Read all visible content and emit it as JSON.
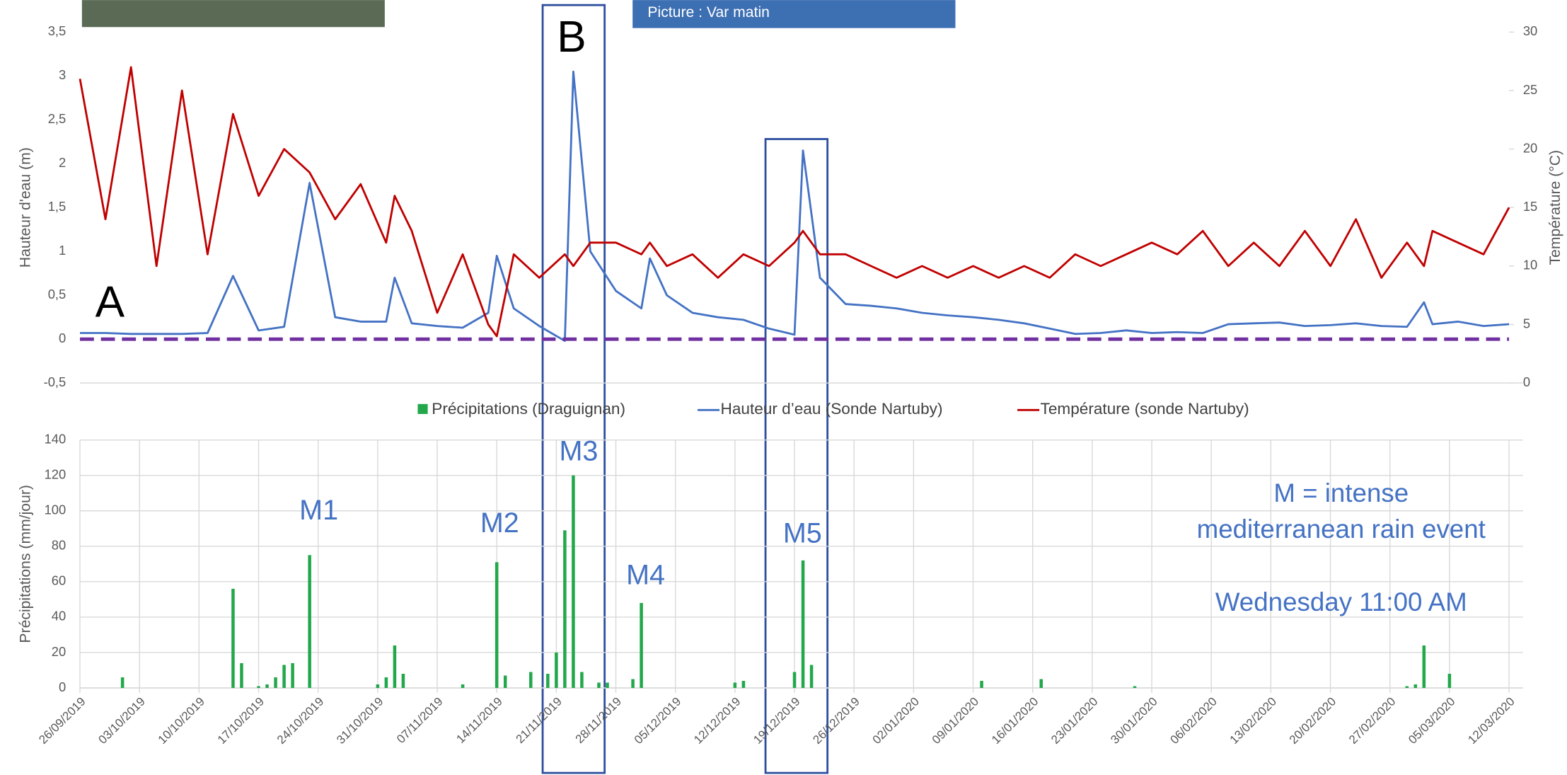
{
  "photo_caption": "Picture : Var matin",
  "chart_data": [
    {
      "type": "line",
      "y_label": "Hauteur d'eau (m)",
      "y2_label": "Température (°C)",
      "annotations": [
        "A",
        "B"
      ],
      "xlim": [
        "26/09/2019",
        "12/03/2020"
      ],
      "ylim": [
        -0.5,
        3.5
      ],
      "yticks": [
        {
          "value": -0.5,
          "label": "-0,5"
        },
        0,
        {
          "value": 0.5,
          "label": "0,5"
        },
        1,
        {
          "value": 1.5,
          "label": "1,5"
        },
        2,
        {
          "value": 2.5,
          "label": "2,5"
        },
        3,
        {
          "value": 3.5,
          "label": "3,5"
        }
      ],
      "y2lim": [
        0,
        30
      ],
      "y2ticks": [
        0,
        5,
        10,
        15,
        20,
        25,
        30
      ],
      "hline": {
        "value": 0,
        "color": "#7030a0"
      },
      "x": [
        "26/09/2019",
        "29/09/2019",
        "02/10/2019",
        "05/10/2019",
        "08/10/2019",
        "11/10/2019",
        "14/10/2019",
        "17/10/2019",
        "20/10/2019",
        "23/10/2019",
        "26/10/2019",
        "29/10/2019",
        "01/11/2019",
        "02/11/2019",
        "04/11/2019",
        "07/11/2019",
        "10/11/2019",
        "13/11/2019",
        "14/11/2019",
        "16/11/2019",
        "19/11/2019",
        "22/11/2019",
        "23/11/2019",
        "25/11/2019",
        "28/11/2019",
        "01/12/2019",
        "02/12/2019",
        "04/12/2019",
        "07/12/2019",
        "10/12/2019",
        "13/12/2019",
        "16/12/2019",
        "19/12/2019",
        "20/12/2019",
        "22/12/2019",
        "25/12/2019",
        "28/12/2019",
        "31/12/2019",
        "03/01/2020",
        "06/01/2020",
        "09/01/2020",
        "12/01/2020",
        "15/01/2020",
        "18/01/2020",
        "21/01/2020",
        "24/01/2020",
        "27/01/2020",
        "30/01/2020",
        "02/02/2020",
        "05/02/2020",
        "08/02/2020",
        "11/02/2020",
        "14/02/2020",
        "17/02/2020",
        "20/02/2020",
        "23/02/2020",
        "26/02/2020",
        "29/02/2020",
        "02/03/2020",
        "03/03/2020",
        "06/03/2020",
        "09/03/2020",
        "12/03/2020"
      ],
      "series": [
        {
          "name": "Hauteur d’eau (Sonde Nartuby)",
          "color": "#4472c4",
          "values": [
            0.07,
            0.07,
            0.06,
            0.06,
            0.06,
            0.07,
            0.72,
            0.1,
            0.14,
            1.78,
            0.25,
            0.2,
            0.2,
            0.7,
            0.18,
            0.15,
            0.13,
            0.3,
            0.95,
            0.35,
            0.15,
            -0.02,
            3.05,
            1.0,
            0.55,
            0.35,
            0.92,
            0.5,
            0.3,
            0.25,
            0.22,
            0.12,
            0.05,
            2.15,
            0.7,
            0.4,
            0.38,
            0.35,
            0.3,
            0.27,
            0.25,
            0.22,
            0.18,
            0.12,
            0.06,
            0.07,
            0.1,
            0.07,
            0.08,
            0.07,
            0.17,
            0.18,
            0.19,
            0.15,
            0.16,
            0.18,
            0.15,
            0.14,
            0.42,
            0.17,
            0.2,
            0.15,
            0.17
          ]
        },
        {
          "name": "Température (sonde Nartuby)",
          "color": "#c00000",
          "axis": "y2",
          "values": [
            26,
            14,
            27,
            10,
            25,
            11,
            23,
            16,
            20,
            18,
            14,
            17,
            12,
            16,
            13,
            6,
            11,
            5,
            4,
            11,
            9,
            11,
            10,
            12,
            12,
            11,
            12,
            10,
            11,
            9,
            11,
            10,
            12,
            13,
            11,
            11,
            10,
            9,
            10,
            9,
            10,
            9,
            10,
            9,
            11,
            10,
            11,
            12,
            11,
            13,
            10,
            12,
            10,
            13,
            10,
            14,
            9,
            12,
            10,
            13,
            12,
            11,
            15
          ]
        }
      ]
    },
    {
      "type": "bar",
      "y_label": "Précipitations (mm/jour)",
      "annotations": [
        "M1",
        "M2",
        "M3",
        "M4",
        "M5",
        "M = intense",
        "mediterranean rain event",
        "Wednesday 11:00 AM"
      ],
      "xlim": [
        "26/09/2019",
        "12/03/2020"
      ],
      "xticks": [
        "26/09/2019",
        "03/10/2019",
        "10/10/2019",
        "17/10/2019",
        "24/10/2019",
        "31/10/2019",
        "07/11/2019",
        "14/11/2019",
        "21/11/2019",
        "28/11/2019",
        "05/12/2019",
        "12/12/2019",
        "19/12/2019",
        "26/12/2019",
        "02/01/2020",
        "09/01/2020",
        "16/01/2020",
        "23/01/2020",
        "30/01/2020",
        "06/02/2020",
        "13/02/2020",
        "20/02/2020",
        "27/02/2020",
        "05/03/2020",
        "12/03/2020"
      ],
      "ylim": [
        0,
        140
      ],
      "yticks": [
        0,
        20,
        40,
        60,
        80,
        100,
        120,
        140
      ],
      "grid": true,
      "series": [
        {
          "name": "Précipitations (Draguignan)",
          "color": "#22a84b",
          "x": [
            "01/10/2019",
            "14/10/2019",
            "15/10/2019",
            "17/10/2019",
            "18/10/2019",
            "19/10/2019",
            "20/10/2019",
            "21/10/2019",
            "23/10/2019",
            "31/10/2019",
            "01/11/2019",
            "02/11/2019",
            "03/11/2019",
            "10/11/2019",
            "14/11/2019",
            "15/11/2019",
            "18/11/2019",
            "20/11/2019",
            "21/11/2019",
            "22/11/2019",
            "23/11/2019",
            "24/11/2019",
            "26/11/2019",
            "27/11/2019",
            "30/11/2019",
            "01/12/2019",
            "12/12/2019",
            "13/12/2019",
            "19/12/2019",
            "20/12/2019",
            "21/12/2019",
            "10/01/2020",
            "17/01/2020",
            "28/01/2020",
            "29/02/2020",
            "01/03/2020",
            "02/03/2020",
            "05/03/2020"
          ],
          "values": [
            6,
            56,
            14,
            1,
            2,
            6,
            13,
            14,
            75,
            2,
            6,
            24,
            8,
            2,
            71,
            7,
            9,
            8,
            20,
            89,
            120,
            9,
            3,
            3,
            5,
            48,
            3,
            4,
            9,
            72,
            13,
            4,
            5,
            1,
            1,
            2,
            24,
            8
          ]
        }
      ]
    }
  ]
}
